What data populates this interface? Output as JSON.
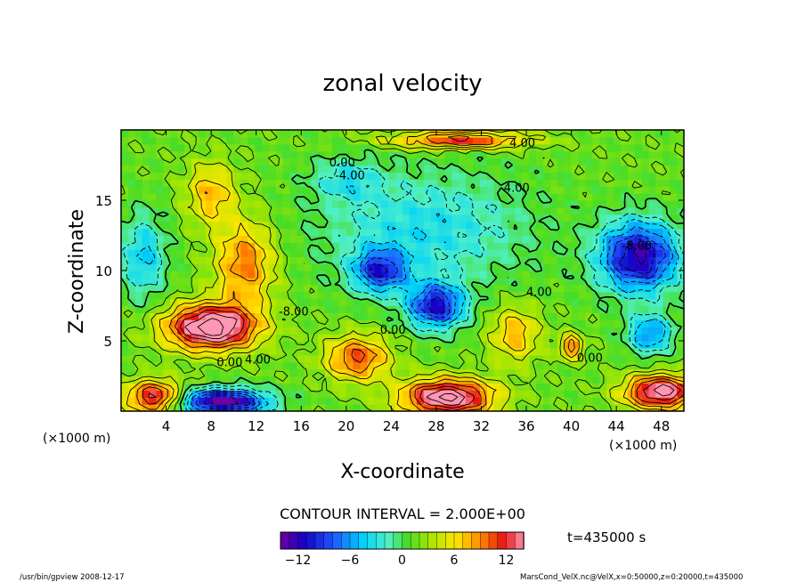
{
  "chart_data": {
    "type": "heatmap",
    "title": "zonal velocity",
    "xlabel": "X-coordinate",
    "ylabel": "Z-coordinate",
    "x_unit": "(×1000 m)",
    "z_unit": "(×1000 m)",
    "xlim": [
      0,
      50
    ],
    "ylim": [
      0,
      20
    ],
    "x_ticks": [
      4,
      8,
      12,
      16,
      20,
      24,
      28,
      32,
      36,
      40,
      44,
      48
    ],
    "y_ticks": [
      5,
      10,
      15
    ],
    "contour_interval_text": "CONTOUR INTERVAL = 2.000E+00",
    "colorbar": {
      "range": [
        -14,
        14
      ],
      "ticks": [
        -12,
        -6,
        0,
        6,
        12
      ]
    },
    "contour_labels": [
      {
        "text": "4.00",
        "x": 34.5,
        "z": 18.8
      },
      {
        "text": "0.00",
        "x": 18.5,
        "z": 17.4
      },
      {
        "text": "-4.00",
        "x": 19.0,
        "z": 16.5
      },
      {
        "text": "4.00",
        "x": 34.0,
        "z": 15.6
      },
      {
        "text": "-8.00",
        "x": 44.5,
        "z": 11.5
      },
      {
        "text": "4.00",
        "x": 36.0,
        "z": 8.2
      },
      {
        "text": "-8.00",
        "x": 14.0,
        "z": 6.8
      },
      {
        "text": "0.00",
        "x": 23.0,
        "z": 5.5
      },
      {
        "text": "0.00",
        "x": 8.5,
        "z": 3.2
      },
      {
        "text": "4.00",
        "x": 11.0,
        "z": 3.4
      },
      {
        "text": "0.00",
        "x": 40.5,
        "z": 3.5
      }
    ],
    "velocity_features": [
      {
        "x": 8,
        "z": 6.0,
        "sx": 4.0,
        "sz": 1.6,
        "value": 16
      },
      {
        "x": 11,
        "z": 10.5,
        "sx": 2.6,
        "sz": 3.0,
        "value": 8
      },
      {
        "x": 8,
        "z": 15.5,
        "sx": 2.2,
        "sz": 2.2,
        "value": 6
      },
      {
        "x": 29,
        "z": 1.0,
        "sx": 4.0,
        "sz": 1.3,
        "value": 15
      },
      {
        "x": 3,
        "z": 1.0,
        "sx": 2.5,
        "sz": 1.2,
        "value": 12
      },
      {
        "x": 48,
        "z": 1.4,
        "sx": 3.2,
        "sz": 1.2,
        "value": 14
      },
      {
        "x": 21,
        "z": 3.8,
        "sx": 2.8,
        "sz": 1.6,
        "value": 9
      },
      {
        "x": 35,
        "z": 5.5,
        "sx": 2.2,
        "sz": 2.0,
        "value": 6
      },
      {
        "x": 40,
        "z": 4.6,
        "sx": 1.0,
        "sz": 0.9,
        "value": 8
      },
      {
        "x": 30,
        "z": 19.3,
        "sx": 6.0,
        "sz": 0.6,
        "value": 10
      },
      {
        "x": 9,
        "z": 0.7,
        "sx": 4.0,
        "sz": 0.9,
        "value": -16
      },
      {
        "x": 28,
        "z": 7.5,
        "sx": 2.5,
        "sz": 1.6,
        "value": -12
      },
      {
        "x": 23,
        "z": 10.0,
        "sx": 2.4,
        "sz": 1.5,
        "value": -10
      },
      {
        "x": 46,
        "z": 11.0,
        "sx": 3.5,
        "sz": 2.5,
        "value": -14
      },
      {
        "x": 47,
        "z": 5.5,
        "sx": 2.0,
        "sz": 1.4,
        "value": -8
      },
      {
        "x": 27,
        "z": 13.0,
        "sx": 9.0,
        "sz": 4.0,
        "value": -5
      },
      {
        "x": 20,
        "z": 16.5,
        "sx": 3.0,
        "sz": 1.5,
        "value": -4
      },
      {
        "x": 2,
        "z": 11.0,
        "sx": 2.0,
        "sz": 3.0,
        "value": -6
      }
    ]
  },
  "annotations": {
    "time": "t=435000 s",
    "footer_left": "/usr/bin/gpview   2008-12-17",
    "footer_right": "MarsCond_VelX.nc@VelX,x=0:50000,z=0:20000,t=435000"
  }
}
